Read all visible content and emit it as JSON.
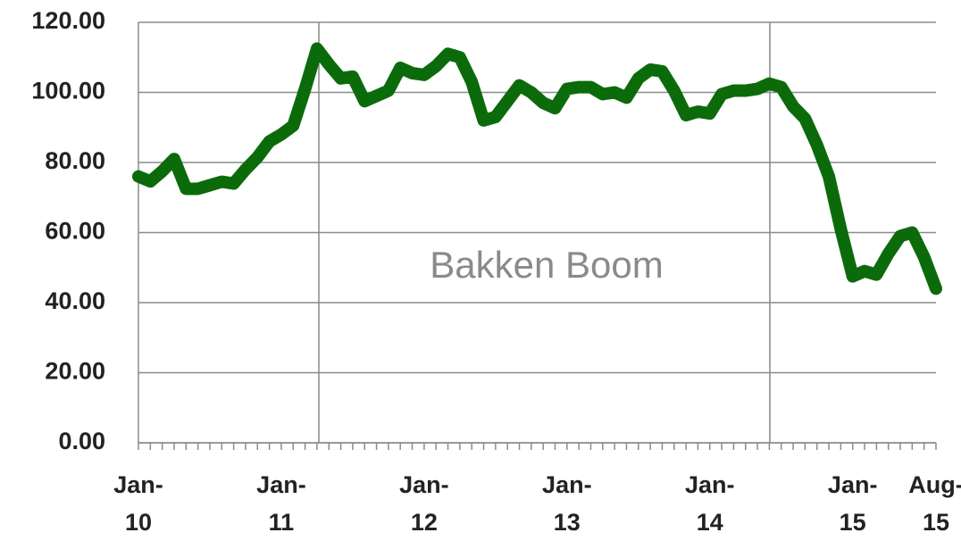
{
  "chart_data": {
    "type": "line",
    "annotation": "Bakken Boom",
    "categories": [
      "Jan-10",
      null,
      null,
      null,
      null,
      null,
      null,
      null,
      null,
      null,
      null,
      null,
      "Jan-11",
      null,
      null,
      null,
      null,
      null,
      null,
      null,
      null,
      null,
      null,
      null,
      "Jan-12",
      null,
      null,
      null,
      null,
      null,
      null,
      null,
      null,
      null,
      null,
      null,
      "Jan-13",
      null,
      null,
      null,
      null,
      null,
      null,
      null,
      null,
      null,
      null,
      null,
      "Jan-14",
      null,
      null,
      null,
      null,
      null,
      null,
      null,
      null,
      null,
      null,
      null,
      "Jan-15",
      null,
      null,
      null,
      null,
      null,
      null,
      "Aug-15"
    ],
    "series": [
      {
        "color": "#0b6b0b",
        "values": [
          76,
          74.6,
          77.5,
          81,
          72.5,
          72.5,
          73.5,
          74.5,
          74,
          78,
          81.5,
          86,
          88,
          90.5,
          101,
          112.5,
          108,
          104,
          104.5,
          97.5,
          99,
          100.5,
          107,
          105.5,
          105,
          107.5,
          111,
          110,
          103,
          92,
          93,
          97.5,
          102,
          100,
          97,
          95.5,
          101,
          101.5,
          101.5,
          99.5,
          100,
          98.5,
          104,
          106.5,
          106,
          100.5,
          93.5,
          94.5,
          94,
          99.5,
          100.5,
          100.5,
          101,
          102.5,
          101.5,
          96,
          92.5,
          85,
          76,
          61,
          47.5,
          49,
          48,
          54,
          59,
          60,
          53,
          44
        ]
      }
    ],
    "ylim": [
      0,
      120
    ],
    "yticks": [
      {
        "value": 0,
        "label": "0.00"
      },
      {
        "value": 20,
        "label": "20.00"
      },
      {
        "value": 40,
        "label": "40.00"
      },
      {
        "value": 60,
        "label": "60.00"
      },
      {
        "value": 80,
        "label": "80.00"
      },
      {
        "value": 100,
        "label": "100.00"
      },
      {
        "value": 120,
        "label": "120.00"
      }
    ],
    "grid": true
  }
}
